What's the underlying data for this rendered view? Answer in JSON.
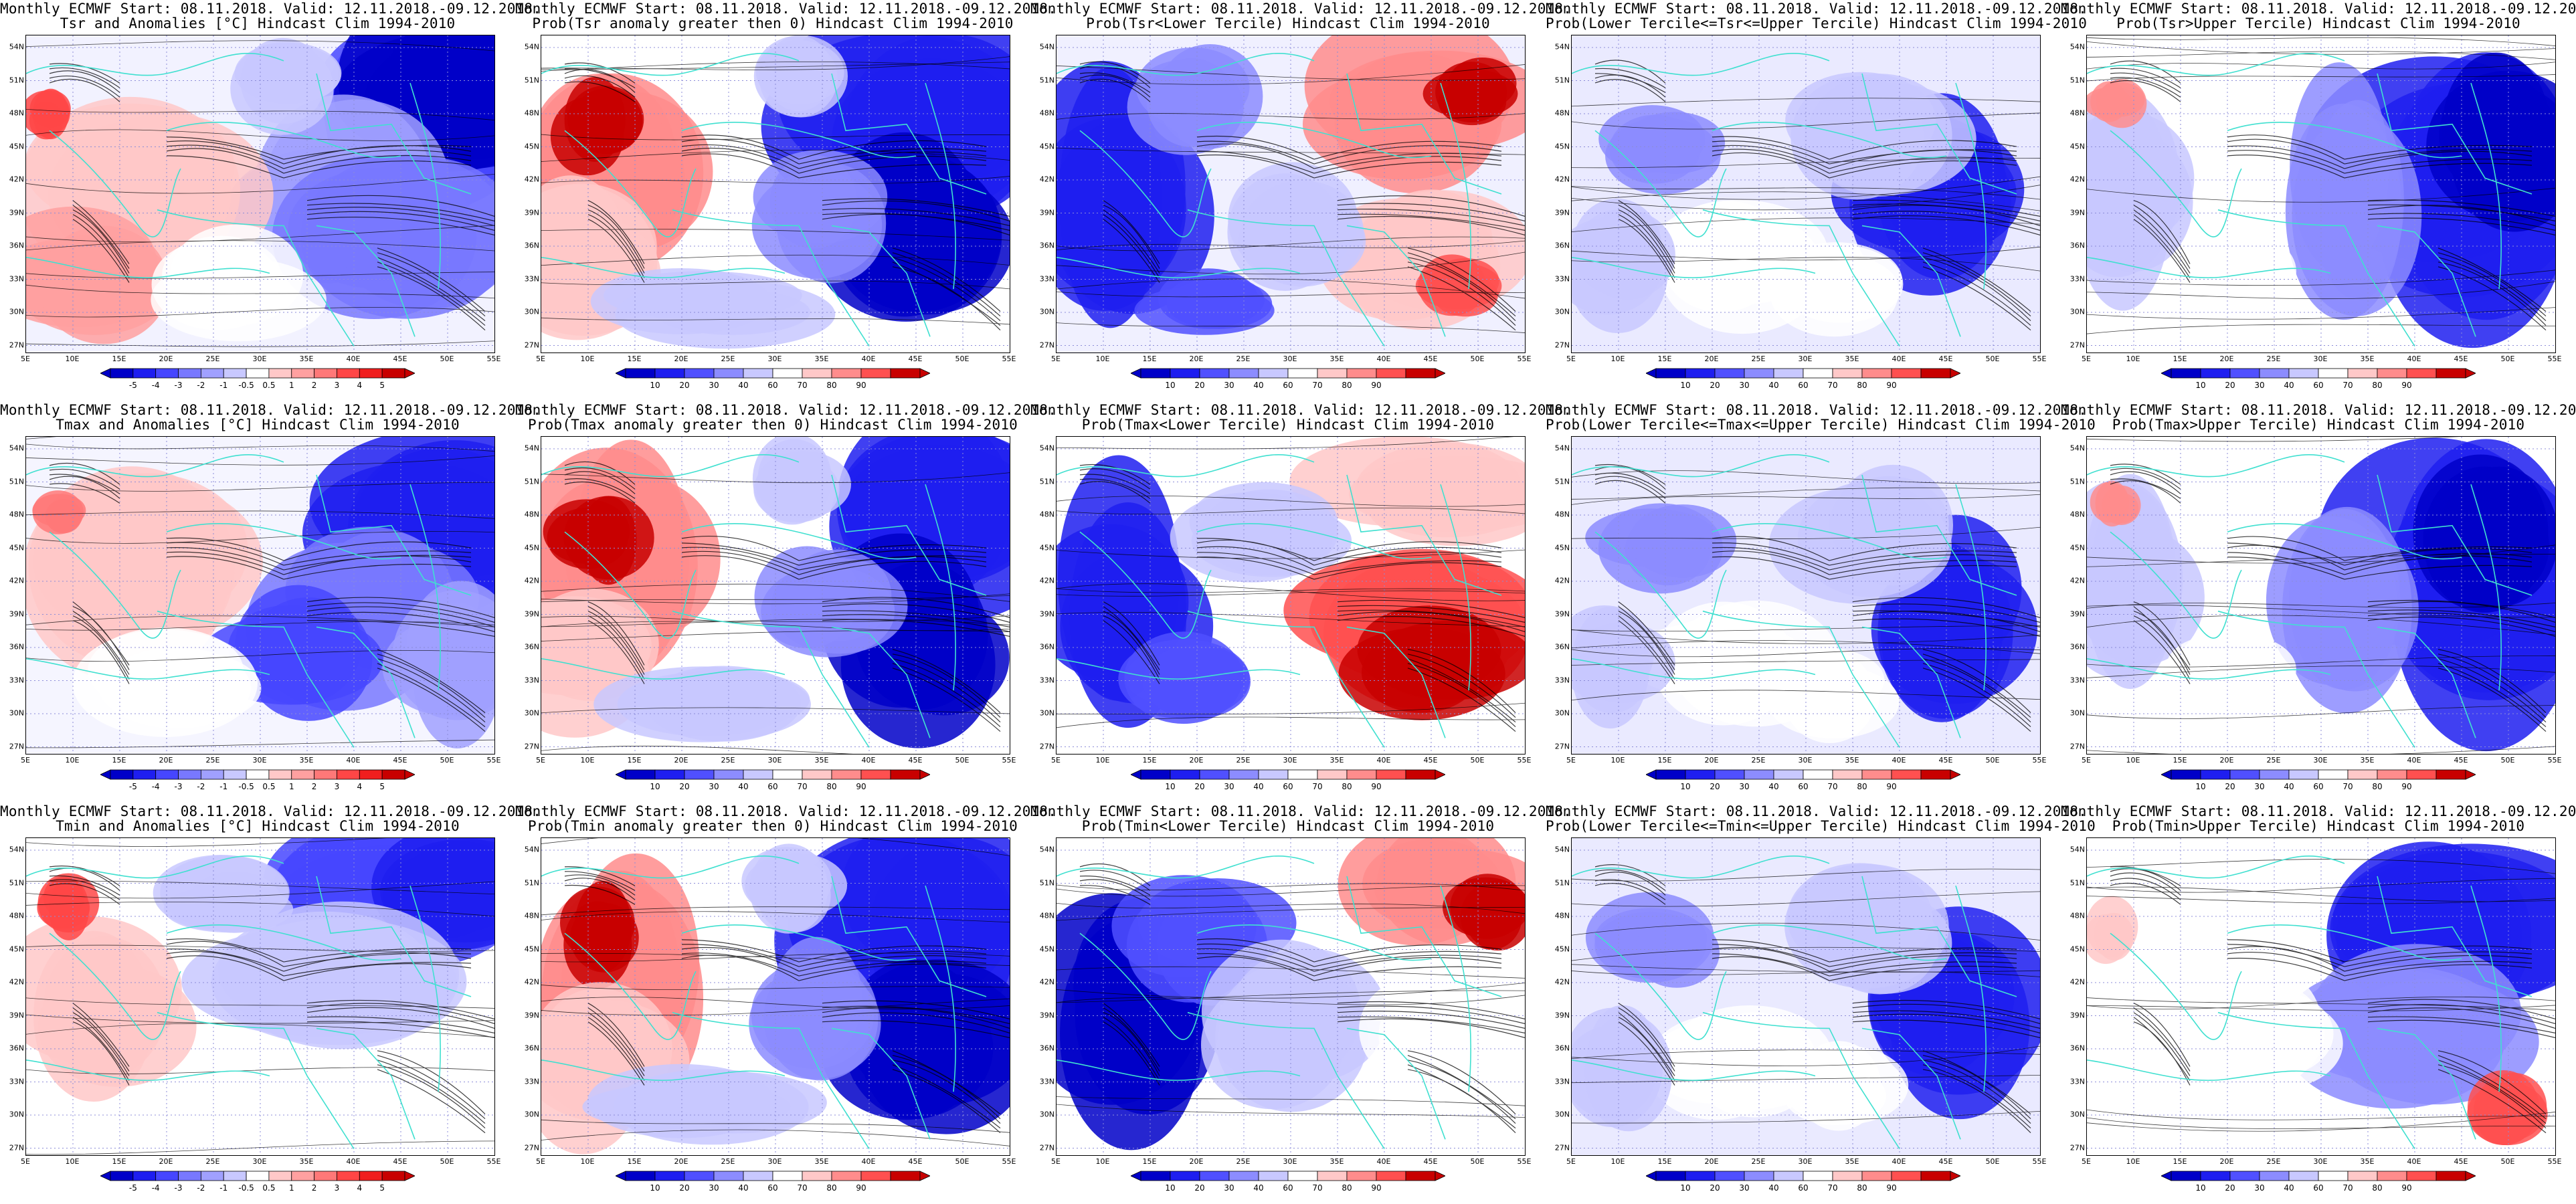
{
  "header_line": "Monthly ECMWF Start: 08.11.2018. Valid: 12.11.2018.-09.12.2018.",
  "rows": [
    {
      "vars": "Tsr",
      "panels": [
        "Tsr and Anomalies [°C] Hindcast Clim 1994-2010",
        "Prob(Tsr anomaly greater then 0) Hindcast Clim 1994-2010",
        "Prob(Tsr<Lower Tercile) Hindcast Clim 1994-2010",
        "Prob(Lower Tercile<=Tsr<=Upper Tercile) Hindcast Clim 1994-2010",
        "Prob(Tsr>Upper Tercile) Hindcast Clim 1994-2010"
      ]
    },
    {
      "vars": "Tmax",
      "panels": [
        "Tmax and Anomalies [°C] Hindcast Clim 1994-2010",
        "Prob(Tmax anomaly greater then 0) Hindcast Clim 1994-2010",
        "Prob(Tmax<Lower Tercile) Hindcast Clim 1994-2010",
        "Prob(Lower Tercile<=Tmax<=Upper Tercile) Hindcast Clim 1994-2010",
        "Prob(Tmax>Upper Tercile) Hindcast Clim 1994-2010"
      ]
    },
    {
      "vars": "Tmin",
      "panels": [
        "Tmin and Anomalies [°C] Hindcast Clim 1994-2010",
        "Prob(Tmin anomaly greater then 0) Hindcast Clim 1994-2010",
        "Prob(Tmin<Lower Tercile) Hindcast Clim 1994-2010",
        "Prob(Lower Tercile<=Tmin<=Upper Tercile) Hindcast Clim 1994-2010",
        "Prob(Tmin>Upper Tercile) Hindcast Clim 1994-2010"
      ]
    }
  ],
  "lat_labels": [
    "54N",
    "51N",
    "48N",
    "45N",
    "42N",
    "39N",
    "36N",
    "33N",
    "30N",
    "27N"
  ],
  "lon_labels": [
    "5E",
    "10E",
    "15E",
    "20E",
    "25E",
    "30E",
    "35E",
    "40E",
    "45E",
    "50E",
    "55E"
  ],
  "anomaly_scale": {
    "labels": [
      "-5",
      "-4",
      "-3",
      "-2",
      "-1",
      "-0.5",
      "0.5",
      "1",
      "2",
      "3",
      "4",
      "5"
    ],
    "colors": [
      "#0000c8",
      "#1e1ef0",
      "#4646ff",
      "#7878ff",
      "#a0a0ff",
      "#c8c8ff",
      "#ffffff",
      "#ffc8c8",
      "#ffa0a0",
      "#ff7878",
      "#ff4646",
      "#f01e1e",
      "#c80000"
    ]
  },
  "prob_scale": {
    "labels": [
      "10",
      "20",
      "30",
      "40",
      "60",
      "70",
      "80",
      "90"
    ],
    "colors": [
      "#0000c8",
      "#1e1ef0",
      "#5050ff",
      "#8c8cff",
      "#c8c8ff",
      "#ffffff",
      "#ffc8c8",
      "#ff8c8c",
      "#ff5050",
      "#c80000"
    ]
  },
  "patterns": [
    [
      "anom_tsr",
      "prob_pos_west",
      "lower_east",
      "middle",
      "upper_east"
    ],
    [
      "anom_tmax",
      "prob_pos_west",
      "lower_southeast",
      "middle",
      "upper_east"
    ],
    [
      "anom_tmin",
      "prob_pos_west",
      "lower_northeast",
      "middle",
      "upper_east_south"
    ]
  ],
  "colors": {
    "coast": "#40e0d0",
    "contour": "#000000",
    "gridline": "#8c8cd8"
  }
}
